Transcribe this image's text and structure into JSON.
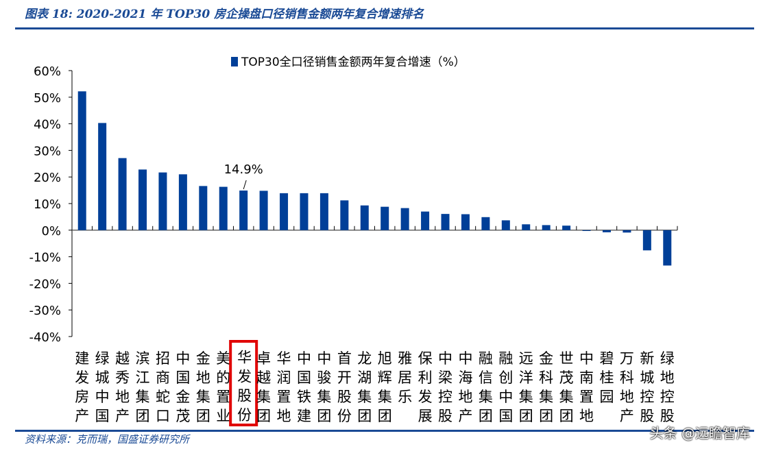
{
  "header": {
    "title": "图表 18:  2020-2021 年 TOP30 房企操盘口径销售金额两年复合增速排名"
  },
  "footer": {
    "source": "资料来源：克而瑞，国盛证券研究所",
    "watermark": "头条 @远瞻智库"
  },
  "colors": {
    "bar": "#003f98",
    "title": "#1a4a95",
    "highlight": "#e00000"
  },
  "chart_data": {
    "type": "bar",
    "title": "",
    "legend": "TOP30全口径销售金额两年复合增速（%）",
    "legend_position": "top",
    "ylim": [
      -40,
      60
    ],
    "yticks": [
      "60%",
      "50%",
      "40%",
      "30%",
      "20%",
      "10%",
      "0%",
      "-10%",
      "-20%",
      "-30%",
      "-40%"
    ],
    "grid": false,
    "categories": [
      "建发房产",
      "绿城中国",
      "越秀地产",
      "滨江集团",
      "招商蛇口",
      "中国金茂",
      "金地集团",
      "美的置业",
      "华发股份",
      "卓越集团",
      "华润置地",
      "中国铁建",
      "中骏集团",
      "首开股份",
      "龙湖集团",
      "旭辉集团",
      "雅居乐",
      "保利发展",
      "中梁控股",
      "中海地产",
      "融信集团",
      "融创中国",
      "远洋集团",
      "金科集团",
      "世茂集团",
      "中南置地",
      "碧桂园",
      "万科地产",
      "新城控股",
      "绿地控股"
    ],
    "values": [
      52.2,
      40.3,
      27.1,
      22.8,
      21.7,
      21.0,
      16.6,
      16.3,
      14.9,
      14.8,
      13.9,
      13.9,
      13.9,
      11.2,
      9.3,
      8.8,
      8.3,
      7.0,
      6.1,
      6.0,
      4.9,
      3.7,
      2.2,
      1.9,
      1.7,
      -0.3,
      -0.8,
      -0.9,
      -7.6,
      -13.3
    ],
    "highlight": {
      "category": "华发股份",
      "label": "14.9%"
    }
  }
}
